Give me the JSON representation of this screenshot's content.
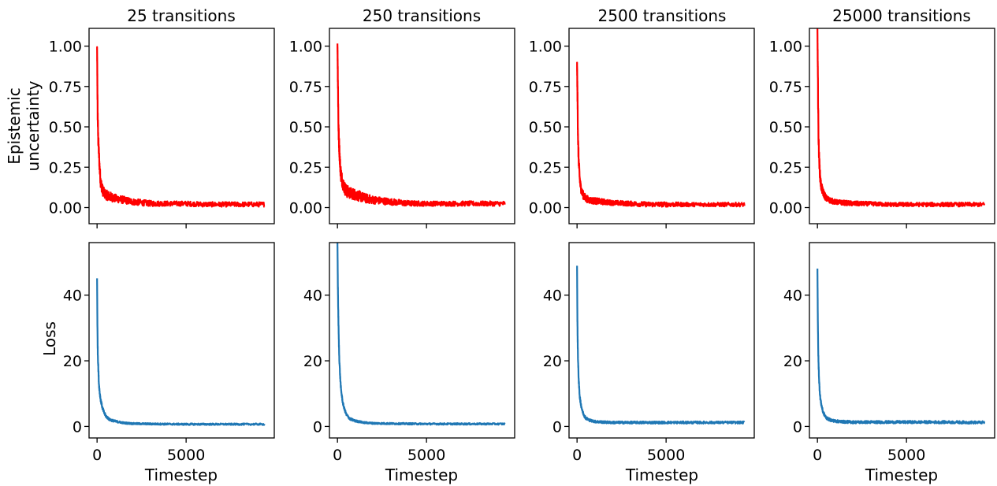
{
  "figure": {
    "column_titles": [
      "25 transitions",
      "250 transitions",
      "2500 transitions",
      "25000 transitions"
    ],
    "row_ylabels": {
      "top_line1": "Epistemic",
      "top_line2": "uncertainty",
      "bottom": "Loss"
    },
    "xlabel": "Timestep"
  },
  "chart_data": [
    {
      "type": "line",
      "panel": "epistemic-25",
      "title": "25 transitions",
      "ylabel": "Epistemic uncertainty",
      "xlabel": "",
      "color": "#ff0000",
      "xlim": [
        -450,
        9950
      ],
      "ylim": [
        -0.1,
        1.11
      ],
      "xticks": [
        0,
        5000
      ],
      "xtick_labels": [
        "",
        ""
      ],
      "yticks": [
        0,
        0.25,
        0.5,
        0.75,
        1.0
      ],
      "ytick_labels": [
        "0.00",
        "0.25",
        "0.50",
        "0.75",
        "1.00"
      ],
      "series": [
        {
          "x": [
            0,
            30,
            60,
            100,
            150,
            200,
            300,
            400,
            500,
            700,
            1000,
            1500,
            2000,
            3000,
            4000,
            5000,
            6000,
            7000,
            8000,
            9000,
            9400
          ],
          "y": [
            0.98,
            0.58,
            0.42,
            0.33,
            0.22,
            0.15,
            0.1,
            0.08,
            0.07,
            0.06,
            0.05,
            0.04,
            0.03,
            0.02,
            0.02,
            0.02,
            0.015,
            0.015,
            0.015,
            0.015,
            0.015
          ],
          "band": [
            0.05,
            0.12,
            0.1,
            0.09,
            0.08,
            0.07,
            0.07,
            0.06,
            0.06,
            0.06,
            0.05,
            0.045,
            0.04,
            0.035,
            0.03,
            0.03,
            0.03,
            0.03,
            0.03,
            0.03,
            0.03
          ]
        }
      ]
    },
    {
      "type": "line",
      "panel": "epistemic-250",
      "title": "250 transitions",
      "ylabel": "",
      "xlabel": "",
      "color": "#ff0000",
      "xlim": [
        -450,
        9950
      ],
      "ylim": [
        -0.1,
        1.11
      ],
      "xticks": [
        0,
        5000
      ],
      "xtick_labels": [
        "",
        ""
      ],
      "yticks": [
        0,
        0.25,
        0.5,
        0.75,
        1.0
      ],
      "ytick_labels": [
        "0.00",
        "0.25",
        "0.50",
        "0.75",
        "1.00"
      ],
      "series": [
        {
          "x": [
            0,
            30,
            60,
            100,
            150,
            200,
            300,
            400,
            500,
            700,
            1000,
            1500,
            2000,
            3000,
            4000,
            5000,
            6000,
            7000,
            8000,
            9000,
            9400
          ],
          "y": [
            1.01,
            0.72,
            0.46,
            0.36,
            0.25,
            0.19,
            0.14,
            0.11,
            0.09,
            0.08,
            0.07,
            0.05,
            0.04,
            0.03,
            0.02,
            0.02,
            0.02,
            0.02,
            0.02,
            0.02,
            0.02
          ],
          "band": [
            0.05,
            0.14,
            0.12,
            0.1,
            0.09,
            0.09,
            0.08,
            0.08,
            0.08,
            0.07,
            0.07,
            0.06,
            0.05,
            0.04,
            0.035,
            0.03,
            0.03,
            0.03,
            0.03,
            0.03,
            0.03
          ]
        }
      ]
    },
    {
      "type": "line",
      "panel": "epistemic-2500",
      "title": "2500 transitions",
      "ylabel": "",
      "xlabel": "",
      "color": "#ff0000",
      "xlim": [
        -450,
        9950
      ],
      "ylim": [
        -0.1,
        1.11
      ],
      "xticks": [
        0,
        5000
      ],
      "xtick_labels": [
        "",
        ""
      ],
      "yticks": [
        0,
        0.25,
        0.5,
        0.75,
        1.0
      ],
      "ytick_labels": [
        "0.00",
        "0.25",
        "0.50",
        "0.75",
        "1.00"
      ],
      "series": [
        {
          "x": [
            0,
            30,
            60,
            100,
            150,
            200,
            300,
            400,
            500,
            700,
            1000,
            1500,
            2000,
            3000,
            4000,
            5000,
            6000,
            7000,
            8000,
            9000,
            9400
          ],
          "y": [
            0.88,
            0.62,
            0.38,
            0.26,
            0.17,
            0.12,
            0.08,
            0.06,
            0.05,
            0.04,
            0.035,
            0.03,
            0.025,
            0.02,
            0.015,
            0.015,
            0.015,
            0.015,
            0.015,
            0.015,
            0.015
          ],
          "band": [
            0.05,
            0.12,
            0.1,
            0.08,
            0.07,
            0.06,
            0.05,
            0.05,
            0.045,
            0.04,
            0.04,
            0.035,
            0.03,
            0.03,
            0.03,
            0.03,
            0.025,
            0.025,
            0.025,
            0.025,
            0.025
          ]
        }
      ]
    },
    {
      "type": "line",
      "panel": "epistemic-25000",
      "title": "25000 transitions",
      "ylabel": "",
      "xlabel": "",
      "color": "#ff0000",
      "xlim": [
        -450,
        9950
      ],
      "ylim": [
        -0.1,
        1.11
      ],
      "xticks": [
        0,
        5000
      ],
      "xtick_labels": [
        "",
        ""
      ],
      "yticks": [
        0,
        0.25,
        0.5,
        0.75,
        1.0
      ],
      "ytick_labels": [
        "0.00",
        "0.25",
        "0.50",
        "0.75",
        "1.00"
      ],
      "series": [
        {
          "x": [
            0,
            30,
            60,
            100,
            150,
            200,
            300,
            400,
            500,
            700,
            1000,
            1500,
            2000,
            3000,
            4000,
            5000,
            6000,
            7000,
            8000,
            9000,
            9400
          ],
          "y": [
            1.1,
            0.72,
            0.42,
            0.28,
            0.18,
            0.13,
            0.09,
            0.07,
            0.05,
            0.04,
            0.03,
            0.025,
            0.02,
            0.02,
            0.015,
            0.015,
            0.015,
            0.015,
            0.015,
            0.015,
            0.015
          ],
          "band": [
            0.02,
            0.12,
            0.1,
            0.08,
            0.07,
            0.06,
            0.05,
            0.045,
            0.04,
            0.035,
            0.03,
            0.03,
            0.03,
            0.025,
            0.025,
            0.025,
            0.025,
            0.025,
            0.025,
            0.025,
            0.025
          ]
        }
      ]
    },
    {
      "type": "line",
      "panel": "loss-25",
      "title": "",
      "ylabel": "Loss",
      "xlabel": "Timestep",
      "color": "#1f77b4",
      "xlim": [
        -450,
        9950
      ],
      "ylim": [
        -3.5,
        56
      ],
      "xticks": [
        0,
        5000
      ],
      "xtick_labels": [
        "0",
        "5000"
      ],
      "yticks": [
        0,
        20,
        40
      ],
      "ytick_labels": [
        "0",
        "20",
        "40"
      ],
      "series": [
        {
          "x": [
            0,
            20,
            40,
            60,
            80,
            100,
            150,
            200,
            300,
            400,
            500,
            700,
            1000,
            1500,
            2000,
            3000,
            5000,
            7000,
            9000,
            9400
          ],
          "y": [
            45,
            30,
            22,
            19,
            16,
            13,
            10,
            8,
            5.5,
            4,
            3,
            2,
            1.5,
            1,
            0.8,
            0.7,
            0.6,
            0.6,
            0.6,
            0.6
          ],
          "band": [
            0.5,
            2,
            2,
            2,
            1.8,
            1.6,
            1.4,
            1.2,
            1,
            0.9,
            0.8,
            0.7,
            0.6,
            0.5,
            0.5,
            0.5,
            0.5,
            0.5,
            0.5,
            0.5
          ]
        }
      ]
    },
    {
      "type": "line",
      "panel": "loss-250",
      "title": "",
      "ylabel": "",
      "xlabel": "Timestep",
      "color": "#1f77b4",
      "xlim": [
        -450,
        9950
      ],
      "ylim": [
        -3.5,
        56
      ],
      "xticks": [
        0,
        5000
      ],
      "xtick_labels": [
        "0",
        "5000"
      ],
      "yticks": [
        0,
        20,
        40
      ],
      "ytick_labels": [
        "0",
        "20",
        "40"
      ],
      "series": [
        {
          "x": [
            0,
            20,
            40,
            60,
            80,
            100,
            150,
            200,
            300,
            400,
            500,
            700,
            1000,
            1500,
            2000,
            3000,
            5000,
            7000,
            9000,
            9400
          ],
          "y": [
            56,
            44,
            36,
            30,
            25,
            21,
            15,
            11,
            7,
            5,
            3.5,
            2.2,
            1.6,
            1.1,
            0.9,
            0.8,
            0.7,
            0.7,
            0.7,
            0.7
          ],
          "band": [
            0.5,
            2,
            2,
            2,
            1.8,
            1.6,
            1.4,
            1.2,
            1,
            0.9,
            0.8,
            0.7,
            0.6,
            0.5,
            0.5,
            0.5,
            0.5,
            0.5,
            0.5,
            0.5
          ]
        }
      ]
    },
    {
      "type": "line",
      "panel": "loss-2500",
      "title": "",
      "ylabel": "",
      "xlabel": "Timestep",
      "color": "#1f77b4",
      "xlim": [
        -450,
        9950
      ],
      "ylim": [
        -3.5,
        56
      ],
      "xticks": [
        0,
        5000
      ],
      "xtick_labels": [
        "0",
        "5000"
      ],
      "yticks": [
        0,
        20,
        40
      ],
      "ytick_labels": [
        "0",
        "20",
        "40"
      ],
      "series": [
        {
          "x": [
            0,
            20,
            40,
            60,
            80,
            100,
            150,
            200,
            300,
            400,
            500,
            700,
            1000,
            1500,
            2000,
            3000,
            5000,
            7000,
            9000,
            9400
          ],
          "y": [
            49,
            32,
            24,
            19,
            16,
            13,
            9,
            7,
            4.5,
            3.2,
            2.4,
            1.8,
            1.4,
            1.2,
            1.1,
            1.1,
            1.1,
            1.1,
            1.1,
            1.1
          ],
          "band": [
            0.5,
            2,
            2,
            2,
            1.8,
            1.6,
            1.4,
            1.2,
            1,
            0.9,
            0.8,
            0.7,
            0.7,
            0.7,
            0.7,
            0.7,
            0.7,
            0.7,
            0.7,
            0.7
          ]
        }
      ]
    },
    {
      "type": "line",
      "panel": "loss-25000",
      "title": "",
      "ylabel": "",
      "xlabel": "Timestep",
      "color": "#1f77b4",
      "xlim": [
        -450,
        9950
      ],
      "ylim": [
        -3.5,
        56
      ],
      "xticks": [
        0,
        5000
      ],
      "xtick_labels": [
        "0",
        "5000"
      ],
      "yticks": [
        0,
        20,
        40
      ],
      "ytick_labels": [
        "0",
        "20",
        "40"
      ],
      "series": [
        {
          "x": [
            0,
            20,
            40,
            60,
            80,
            100,
            150,
            200,
            300,
            400,
            500,
            700,
            1000,
            1500,
            2000,
            3000,
            5000,
            7000,
            9000,
            9400
          ],
          "y": [
            48,
            34,
            24,
            19,
            16,
            13,
            9,
            7,
            4.5,
            3.3,
            2.5,
            1.9,
            1.5,
            1.3,
            1.2,
            1.2,
            1.2,
            1.2,
            1.1,
            1.1
          ],
          "band": [
            0.5,
            2,
            2,
            2,
            1.8,
            1.6,
            1.4,
            1.2,
            1,
            0.9,
            0.8,
            0.8,
            0.8,
            0.8,
            0.8,
            0.8,
            0.8,
            0.8,
            0.8,
            0.8
          ]
        }
      ]
    }
  ]
}
